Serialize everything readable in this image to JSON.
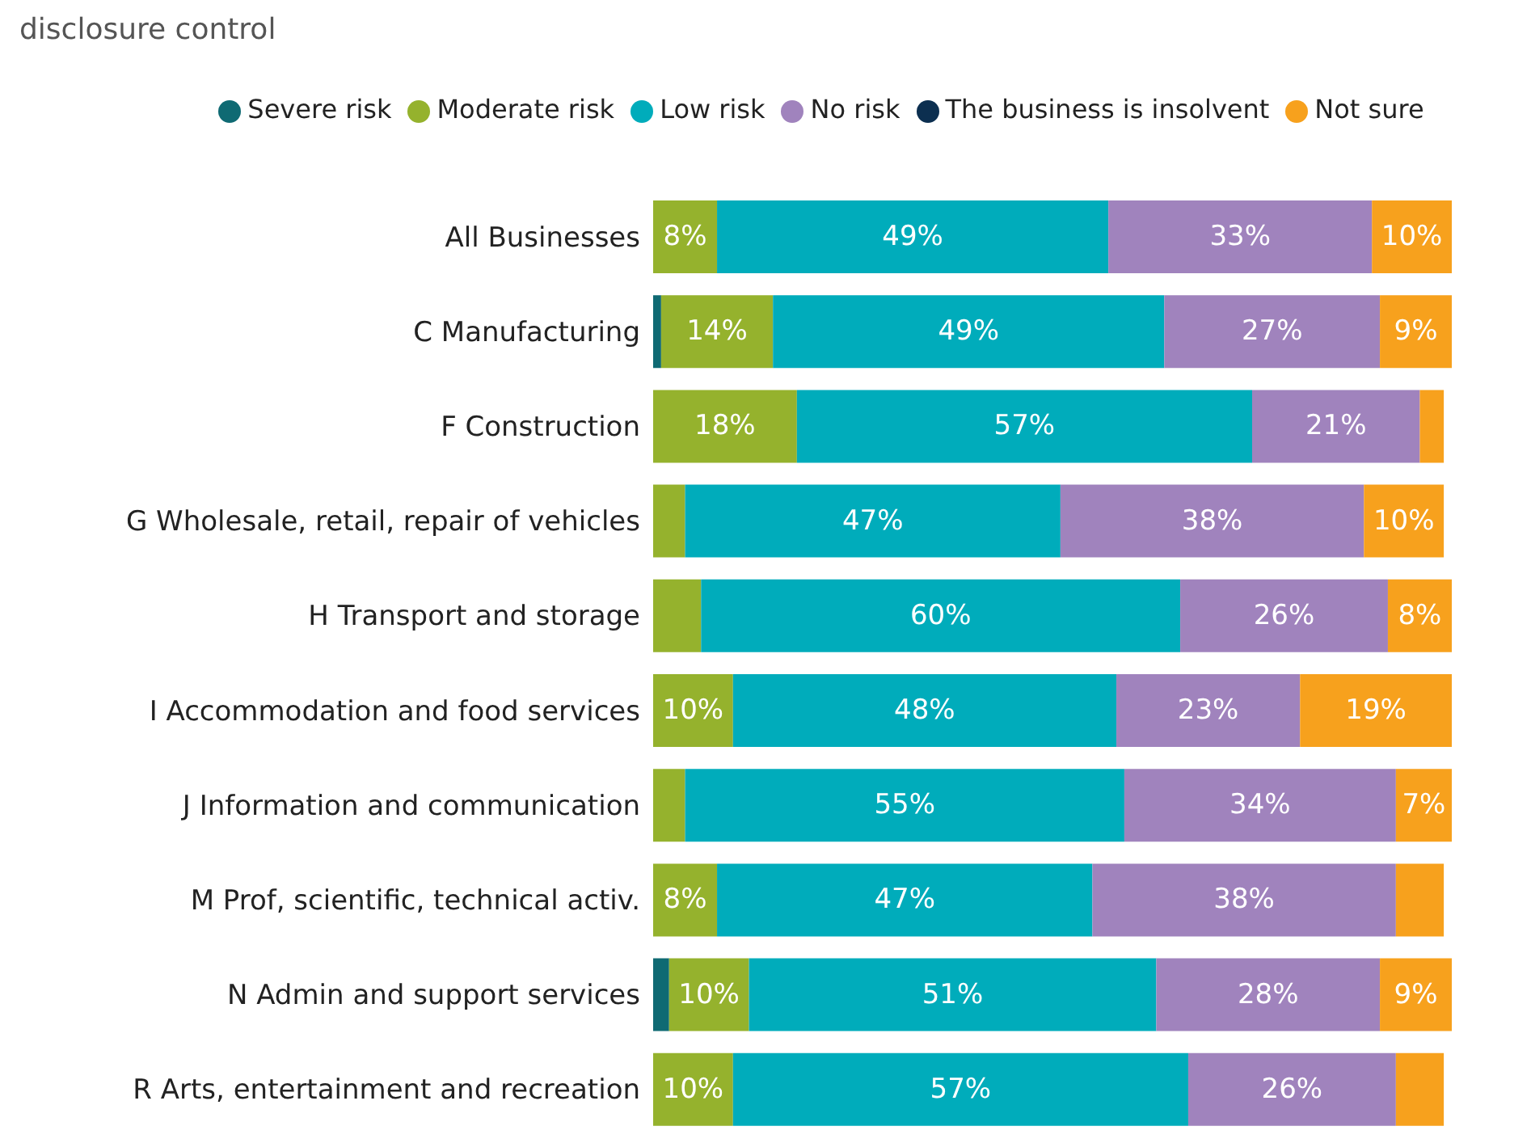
{
  "chart_data": {
    "type": "bar",
    "orientation": "horizontal",
    "stacked": true,
    "title": "disclosure control",
    "legend": "top",
    "tick_labels": "y",
    "xlim": [
      0,
      100
    ],
    "categories": [
      "All Businesses",
      "C Manufacturing",
      "F Construction",
      "G Wholesale, retail, repair of vehicles",
      "H Transport and storage",
      "I Accommodation and food services",
      "J Information and communication",
      "M Prof, scientific, technical activ.",
      "N Admin and support services",
      "R Arts, entertainment and recreation"
    ],
    "series": [
      {
        "name": "Severe risk",
        "color": "#0f6a73",
        "values": [
          0,
          1,
          0,
          0,
          0,
          0,
          0,
          0,
          2,
          0
        ],
        "value_labels": [
          null,
          null,
          null,
          null,
          null,
          null,
          null,
          null,
          null,
          null
        ]
      },
      {
        "name": "Moderate risk",
        "color": "#95b22d",
        "values": [
          8,
          14,
          18,
          4,
          6,
          10,
          4,
          8,
          10,
          10
        ],
        "value_labels": [
          "8%",
          "14%",
          "18%",
          null,
          null,
          "10%",
          null,
          "8%",
          "10%",
          "10%"
        ]
      },
      {
        "name": "Low risk",
        "color": "#00acbb",
        "values": [
          49,
          49,
          57,
          47,
          60,
          48,
          55,
          47,
          51,
          57
        ],
        "value_labels": [
          "49%",
          "49%",
          "57%",
          "47%",
          "60%",
          "48%",
          "55%",
          "47%",
          "51%",
          "57%"
        ]
      },
      {
        "name": "No risk",
        "color": "#a083bd",
        "values": [
          33,
          27,
          21,
          38,
          26,
          23,
          34,
          38,
          28,
          26
        ],
        "value_labels": [
          "33%",
          "27%",
          "21%",
          "38%",
          "26%",
          "23%",
          "34%",
          "38%",
          "28%",
          "26%"
        ]
      },
      {
        "name": "The business is insolvent",
        "color": "#0c2f50",
        "values": [
          0,
          0,
          0,
          0,
          0,
          0,
          0,
          0,
          0,
          0
        ],
        "value_labels": [
          null,
          null,
          null,
          null,
          null,
          null,
          null,
          null,
          null,
          null
        ]
      },
      {
        "name": "Not sure",
        "color": "#f7a11d",
        "values": [
          10,
          9,
          3,
          10,
          8,
          19,
          7,
          6,
          9,
          6
        ],
        "value_labels": [
          "10%",
          "9%",
          null,
          "10%",
          "8%",
          "19%",
          "7%",
          null,
          "9%",
          null
        ]
      }
    ]
  }
}
